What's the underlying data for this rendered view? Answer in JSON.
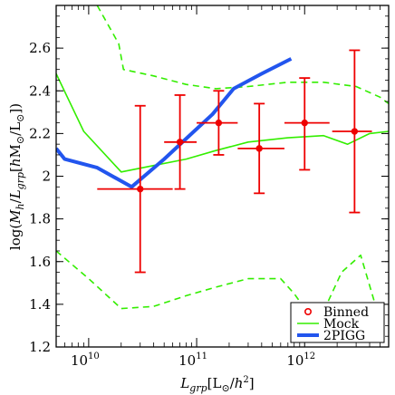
{
  "chart_data": {
    "type": "scatter",
    "xlabel": "L_grp [L_⊙/h²]",
    "ylabel": "log(M_h/L_grp [hM_⊙/L_⊙])",
    "xscale": "log",
    "xlim": [
      5000000000.0,
      6000000000000.0
    ],
    "ylim": [
      1.2,
      2.8
    ],
    "yticks": [
      1.2,
      1.4,
      1.6,
      1.8,
      2.0,
      2.2,
      2.4,
      2.6
    ],
    "ytick_labels": [
      "1.2",
      "1.4",
      "1.6",
      "1.8",
      "2",
      "2.2",
      "2.4",
      "2.6"
    ],
    "xticks": [
      10000000000.0,
      100000000000.0,
      1000000000000.0
    ],
    "xtick_labels": [
      "10",
      "10",
      "10"
    ],
    "xtick_exponents": [
      "10",
      "11",
      "12"
    ],
    "legend_position": "lower-right",
    "series": [
      {
        "name": "Binned",
        "kind": "errorbar",
        "color": "#ee0000",
        "points": [
          {
            "x": 30000000000.0,
            "y": 1.94,
            "xlo": 12000000000.0,
            "xhi": 60000000000.0,
            "ylo": 1.55,
            "yhi": 2.33
          },
          {
            "x": 70000000000.0,
            "y": 2.16,
            "xlo": 50000000000.0,
            "xhi": 100000000000.0,
            "ylo": 1.94,
            "yhi": 2.38
          },
          {
            "x": 160000000000.0,
            "y": 2.25,
            "xlo": 100000000000.0,
            "xhi": 240000000000.0,
            "ylo": 2.1,
            "yhi": 2.4
          },
          {
            "x": 380000000000.0,
            "y": 2.13,
            "xlo": 240000000000.0,
            "xhi": 650000000000.0,
            "ylo": 1.92,
            "yhi": 2.34
          },
          {
            "x": 1000000000000.0,
            "y": 2.25,
            "xlo": 650000000000.0,
            "xhi": 1700000000000.0,
            "ylo": 2.03,
            "yhi": 2.46
          },
          {
            "x": 2900000000000.0,
            "y": 2.21,
            "xlo": 1800000000000.0,
            "xhi": 4200000000000.0,
            "ylo": 1.83,
            "yhi": 2.59
          }
        ]
      },
      {
        "name": "Mock",
        "kind": "line",
        "color": "#33ee00",
        "x": [
          5000000000.0,
          9000000000.0,
          20000000000.0,
          40000000000.0,
          80000000000.0,
          150000000000.0,
          300000000000.0,
          700000000000.0,
          1500000000000.0,
          2500000000000.0,
          4000000000000.0,
          6000000000000.0
        ],
        "values": [
          2.48,
          2.21,
          2.02,
          2.05,
          2.08,
          2.12,
          2.16,
          2.18,
          2.19,
          2.15,
          2.2,
          2.21
        ]
      },
      {
        "name": "",
        "kind": "dashed-line",
        "color": "#33ee00",
        "x": [
          12000000000.0,
          19000000000.0,
          21000000000.0,
          40000000000.0,
          80000000000.0,
          150000000000.0,
          300000000000.0,
          700000000000.0,
          1500000000000.0,
          3000000000000.0,
          5000000000000.0,
          6000000000000.0
        ],
        "values": [
          2.8,
          2.62,
          2.5,
          2.47,
          2.43,
          2.41,
          2.42,
          2.44,
          2.44,
          2.42,
          2.37,
          2.34
        ]
      },
      {
        "name": "",
        "kind": "dashed-line",
        "color": "#33ee00",
        "x": [
          5000000000.0,
          10000000000.0,
          20000000000.0,
          40000000000.0,
          80000000000.0,
          150000000000.0,
          300000000000.0,
          600000000000.0,
          800000000000.0,
          1300000000000.0,
          2200000000000.0,
          3300000000000.0,
          4500000000000.0
        ],
        "values": [
          1.65,
          1.52,
          1.38,
          1.39,
          1.44,
          1.48,
          1.52,
          1.52,
          1.45,
          1.3,
          1.55,
          1.63,
          1.4
        ]
      },
      {
        "name": "2PIGG",
        "kind": "line",
        "color": "#2255ee",
        "x": [
          5000000000.0,
          6000000000.0,
          12000000000.0,
          25000000000.0,
          50000000000.0,
          90000000000.0,
          140000000000.0,
          220000000000.0,
          400000000000.0,
          750000000000.0
        ],
        "values": [
          2.13,
          2.08,
          2.04,
          1.95,
          2.08,
          2.2,
          2.29,
          2.41,
          2.48,
          2.55
        ]
      }
    ]
  }
}
